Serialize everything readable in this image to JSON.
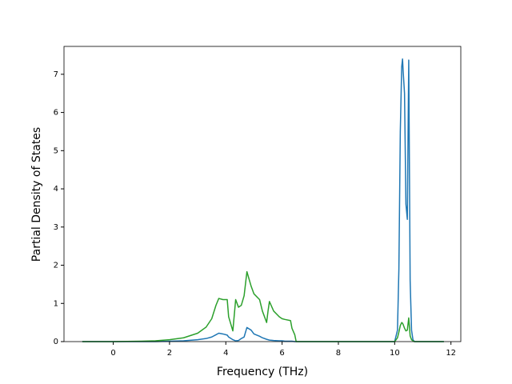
{
  "chart_data": {
    "type": "line",
    "xlabel": "Frequency (THz)",
    "ylabel": "Partial Density of States",
    "x": [
      -1.1,
      0,
      1,
      1.5,
      2,
      2.5,
      3,
      3.3,
      3.5,
      3.65,
      3.75,
      3.9,
      4.05,
      4.1,
      4.25,
      4.35,
      4.45,
      4.55,
      4.65,
      4.75,
      4.9,
      5.0,
      5.2,
      5.3,
      5.45,
      5.5,
      5.55,
      5.7,
      5.9,
      6.0,
      6.1,
      6.3,
      6.35,
      6.45,
      6.5,
      8,
      10.0,
      10.1,
      10.15,
      10.2,
      10.25,
      10.28,
      10.3,
      10.35,
      10.4,
      10.45,
      10.5,
      10.55,
      10.6,
      10.65,
      10.7,
      11.75
    ],
    "series": [
      {
        "color": "#1f77b4",
        "values": [
          0,
          0,
          0,
          0,
          0.01,
          0.02,
          0.05,
          0.08,
          0.12,
          0.18,
          0.22,
          0.2,
          0.17,
          0.12,
          0.05,
          0.02,
          0.03,
          0.08,
          0.12,
          0.37,
          0.3,
          0.2,
          0.14,
          0.1,
          0.06,
          0.05,
          0.04,
          0.03,
          0.02,
          0.02,
          0.01,
          0.01,
          0.01,
          0,
          0,
          0,
          0,
          0.3,
          1.9,
          5.5,
          7.2,
          7.4,
          7.1,
          6.5,
          3.6,
          3.2,
          7.37,
          1.6,
          0.3,
          0.05,
          0,
          0
        ]
      },
      {
        "color": "#2ca02c",
        "values": [
          0,
          0,
          0.01,
          0.02,
          0.05,
          0.1,
          0.22,
          0.38,
          0.6,
          0.95,
          1.13,
          1.1,
          1.1,
          0.65,
          0.28,
          1.1,
          0.9,
          0.95,
          1.2,
          1.83,
          1.45,
          1.25,
          1.1,
          0.8,
          0.5,
          0.8,
          1.05,
          0.8,
          0.65,
          0.6,
          0.58,
          0.55,
          0.35,
          0.18,
          0,
          0,
          0,
          0.1,
          0.25,
          0.42,
          0.5,
          0.48,
          0.45,
          0.35,
          0.28,
          0.3,
          0.62,
          0.15,
          0.05,
          0.02,
          0,
          0
        ]
      }
    ],
    "xlim": [
      -1.75,
      12.35
    ],
    "ylim": [
      0,
      7.73
    ],
    "xticks": [
      0,
      2,
      4,
      6,
      8,
      10,
      12
    ],
    "yticks": [
      0,
      1,
      2,
      3,
      4,
      5,
      6,
      7
    ]
  }
}
